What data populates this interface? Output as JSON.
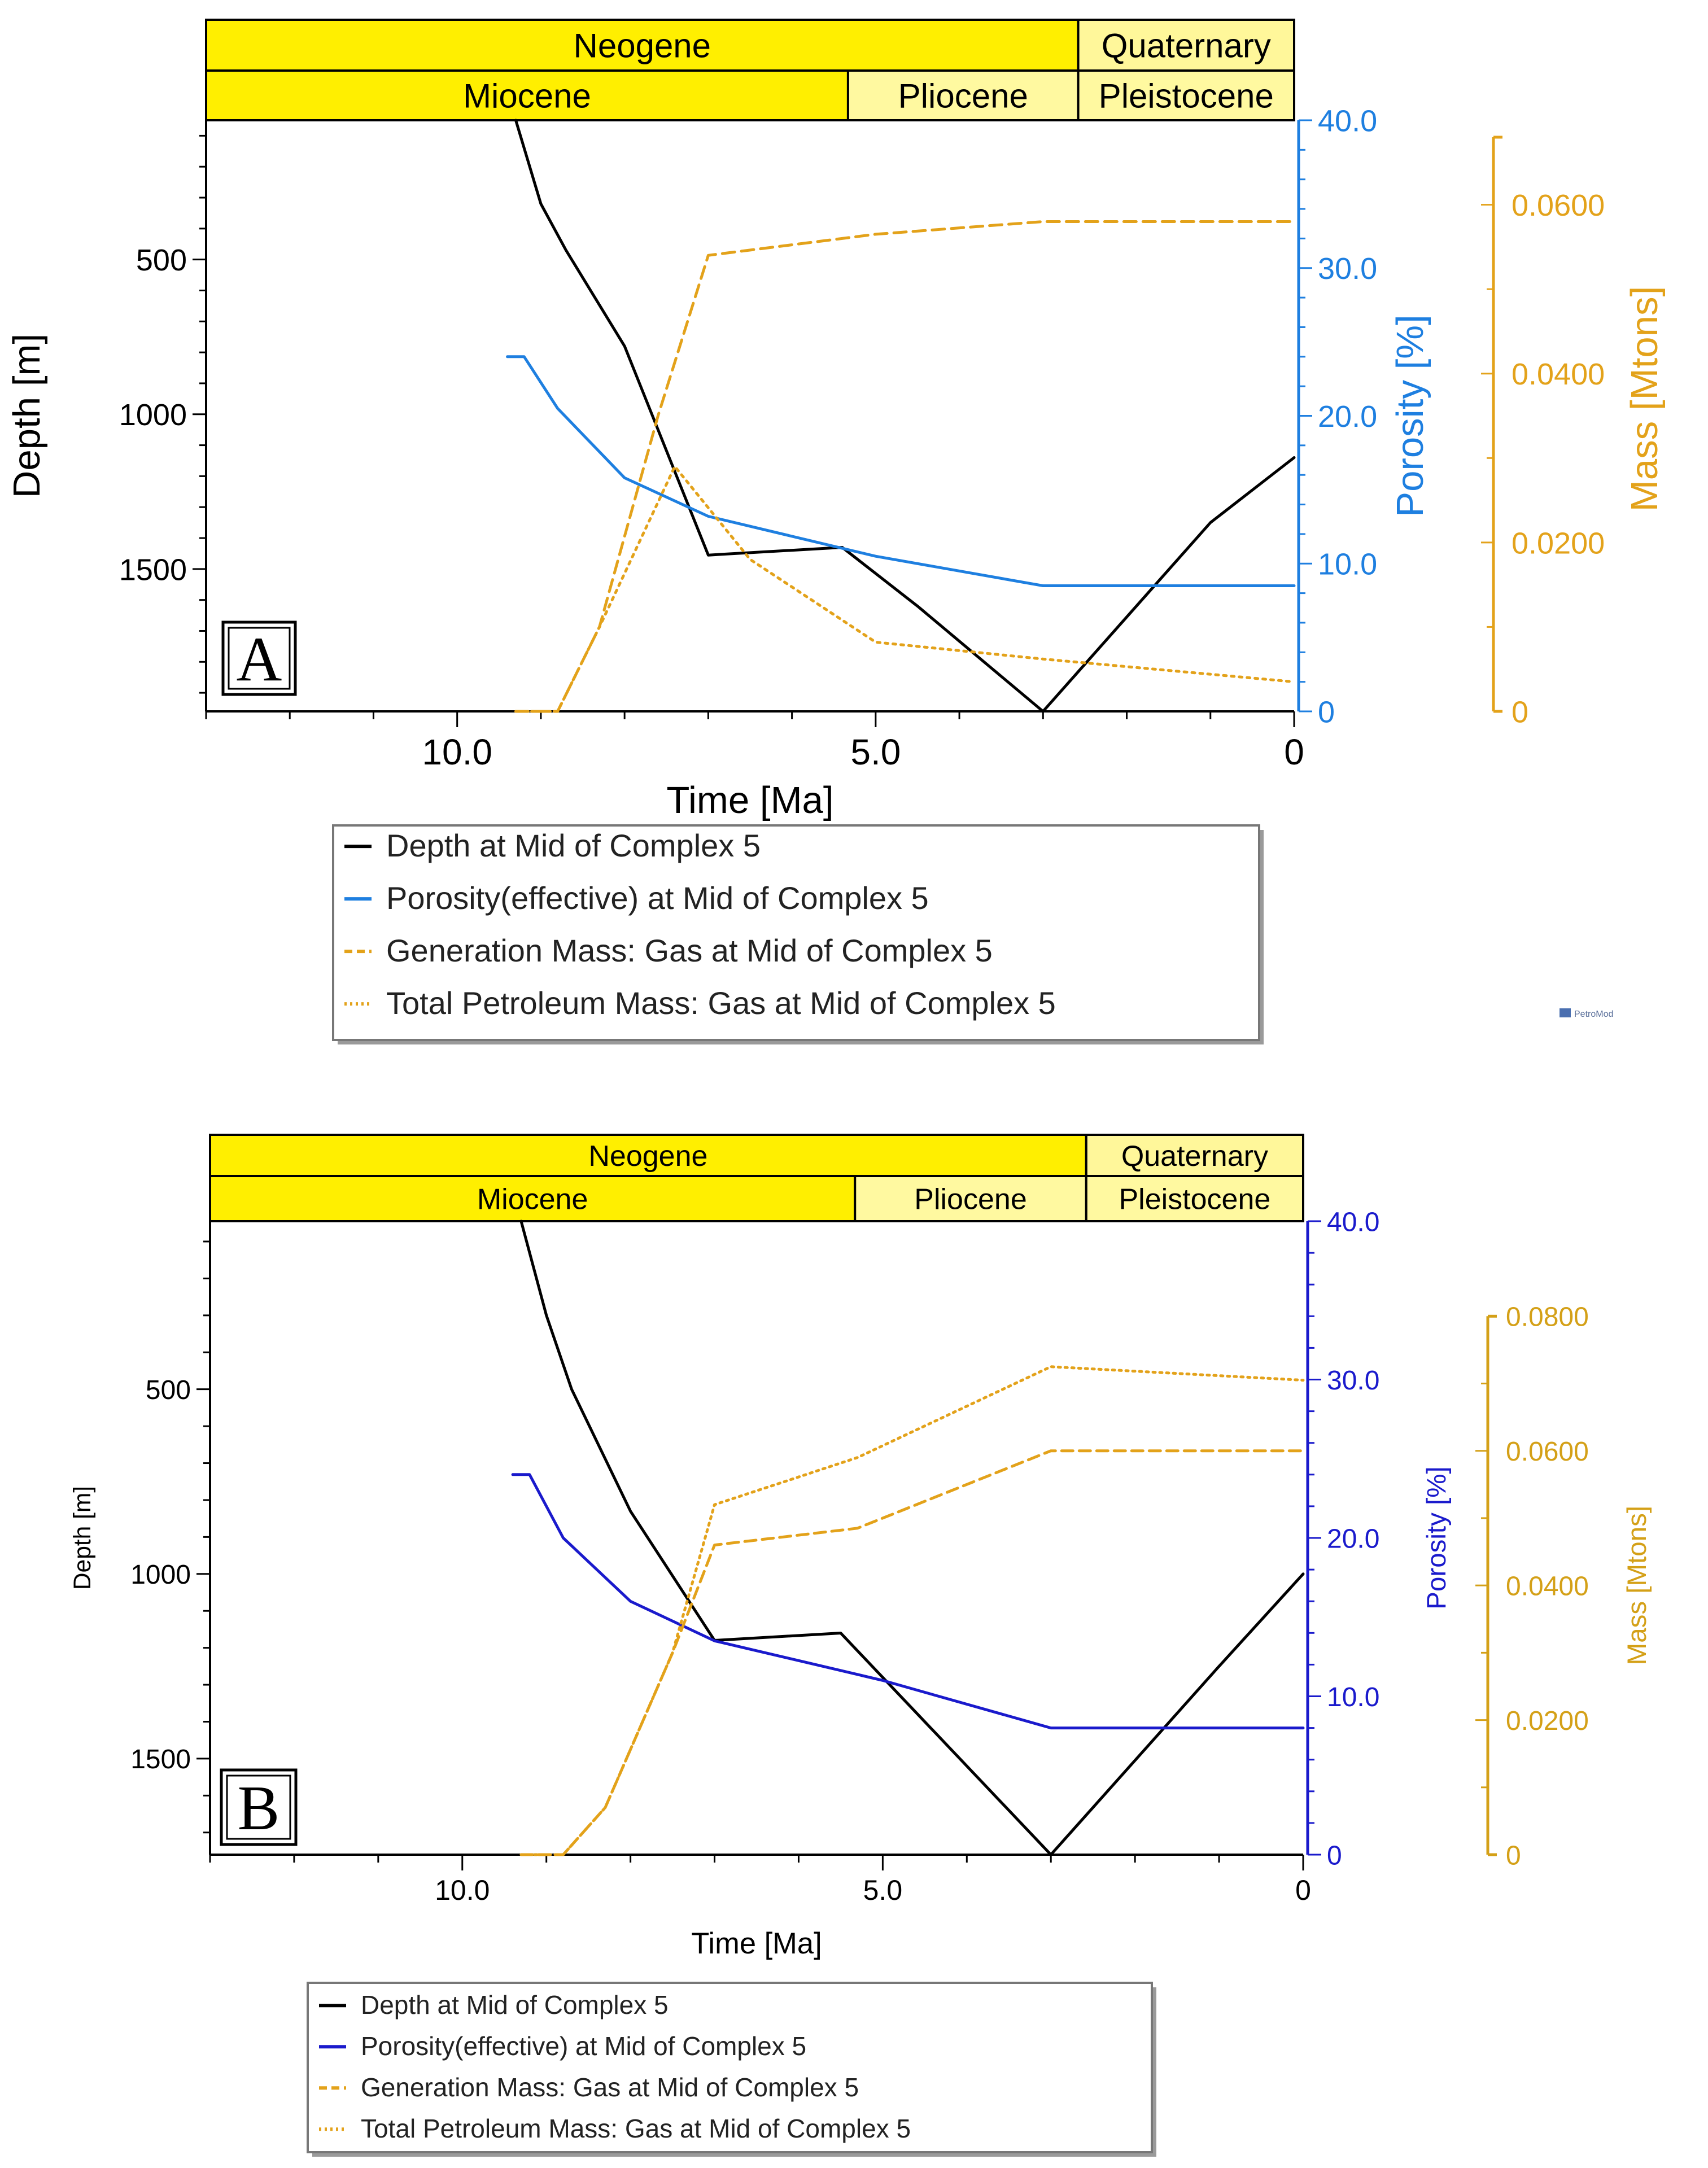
{
  "chart_data": [
    {
      "type": "line",
      "panel_label": "A",
      "time_scale": {
        "period_row": [
          {
            "name": "Neogene",
            "from": 13,
            "to": 2.58
          },
          {
            "name": "Quaternary",
            "from": 2.58,
            "to": 0
          }
        ],
        "epoch_row": [
          {
            "name": "Miocene",
            "from": 13,
            "to": 5.33
          },
          {
            "name": "Pliocene",
            "from": 5.33,
            "to": 2.58
          },
          {
            "name": "Pleistocene",
            "from": 2.58,
            "to": 0
          }
        ]
      },
      "xlabel": "Time [Ma]",
      "xlim": [
        13,
        0
      ],
      "x_ticks": [
        10,
        5,
        0
      ],
      "x_tick_labels": [
        "10.0",
        "5.0",
        "0"
      ],
      "y_left": {
        "label": "Depth [m]",
        "lim": [
          50,
          1960
        ],
        "ticks": [
          500,
          1000,
          1500
        ],
        "tick_labels": [
          "500",
          "1000",
          "1500"
        ],
        "color": "#000000"
      },
      "y_right_1": {
        "label": "Porosity [%]",
        "lim": [
          0,
          40
        ],
        "ticks": [
          0,
          10,
          20,
          30,
          40
        ],
        "tick_labels": [
          "0",
          "10.0",
          "20.0",
          "30.0",
          "40.0"
        ],
        "color": "#1e7fe0"
      },
      "y_right_2": {
        "label": "Mass [Mtons]",
        "lim": [
          0,
          0.07
        ],
        "ticks": [
          0,
          0.02,
          0.04,
          0.06
        ],
        "tick_labels": [
          "0",
          "0.0200",
          "0.0400",
          "0.0600"
        ],
        "color": "#e3a21a"
      },
      "series": [
        {
          "name": "Depth at Mid of Complex 5",
          "axis": "left",
          "color": "#000000",
          "style": "solid",
          "x": [
            9.3,
            9.0,
            8.7,
            8.0,
            7.0,
            5.4,
            4.5,
            3.0,
            1.0,
            0
          ],
          "y": [
            50,
            320,
            470,
            780,
            1455,
            1430,
            1620,
            1960,
            1350,
            1140
          ]
        },
        {
          "name": "Porosity(effective) at Mid of Complex 5",
          "axis": "right1",
          "color": "#1e7fe0",
          "style": "solid",
          "x": [
            9.4,
            9.2,
            8.8,
            8.0,
            7.0,
            5.0,
            3.0,
            0
          ],
          "y": [
            24.0,
            24.0,
            20.5,
            15.8,
            13.2,
            10.5,
            8.5,
            8.5
          ]
        },
        {
          "name": "Generation Mass: Gas at Mid of Complex 5",
          "axis": "right2",
          "color": "#e3a21a",
          "style": "dashed",
          "x": [
            9.3,
            8.8,
            8.3,
            7.6,
            7.0,
            5.0,
            3.0,
            0
          ],
          "y": [
            0.0,
            0.0,
            0.01,
            0.035,
            0.054,
            0.0565,
            0.058,
            0.058
          ]
        },
        {
          "name": "Total Petroleum Mass: Gas at Mid of Complex 5",
          "axis": "right2",
          "color": "#e3a21a",
          "style": "dotted",
          "x": [
            9.3,
            8.8,
            8.3,
            7.4,
            6.5,
            5.0,
            3.0,
            0
          ],
          "y": [
            0.0,
            0.0,
            0.01,
            0.029,
            0.018,
            0.0082,
            0.0062,
            0.0035
          ]
        }
      ]
    },
    {
      "type": "line",
      "panel_label": "B",
      "time_scale": {
        "period_row": [
          {
            "name": "Neogene",
            "from": 13,
            "to": 2.58
          },
          {
            "name": "Quaternary",
            "from": 2.58,
            "to": 0
          }
        ],
        "epoch_row": [
          {
            "name": "Miocene",
            "from": 13,
            "to": 5.33
          },
          {
            "name": "Pliocene",
            "from": 5.33,
            "to": 2.58
          },
          {
            "name": "Pleistocene",
            "from": 2.58,
            "to": 0
          }
        ]
      },
      "xlabel": "Time [Ma]",
      "xlim": [
        13,
        0
      ],
      "x_ticks": [
        10,
        5,
        0
      ],
      "x_tick_labels": [
        "10.0",
        "5.0",
        "0"
      ],
      "y_left": {
        "label": "Depth [m]",
        "lim": [
          45,
          1760
        ],
        "ticks": [
          500,
          1000,
          1500
        ],
        "tick_labels": [
          "500",
          "1000",
          "1500"
        ],
        "color": "#000000"
      },
      "y_right_1": {
        "label": "Porosity [%]",
        "lim": [
          0,
          40
        ],
        "ticks": [
          0,
          10,
          20,
          30,
          40
        ],
        "tick_labels": [
          "0",
          "10.0",
          "20.0",
          "30.0",
          "40.0"
        ],
        "color": "#1a1acc"
      },
      "y_right_2": {
        "label": "Mass [Mtons]",
        "lim": [
          0,
          0.08
        ],
        "ticks": [
          0,
          0.02,
          0.04,
          0.06,
          0.08
        ],
        "tick_labels": [
          "0",
          "0.0200",
          "0.0400",
          "0.0600",
          "0.0800"
        ],
        "color": "#d4a017"
      },
      "series": [
        {
          "name": "Depth at Mid of Complex 5",
          "axis": "left",
          "color": "#000000",
          "style": "solid",
          "x": [
            9.3,
            9.0,
            8.7,
            8.0,
            7.0,
            5.5,
            4.5,
            3.0,
            1.0,
            0
          ],
          "y": [
            45,
            300,
            500,
            830,
            1180,
            1160,
            1400,
            1760,
            1250,
            1000
          ]
        },
        {
          "name": "Porosity(effective) at Mid of Complex 5",
          "axis": "right1",
          "color": "#1a1acc",
          "style": "solid",
          "x": [
            9.4,
            9.2,
            8.8,
            8.0,
            7.0,
            5.0,
            3.0,
            0
          ],
          "y": [
            24.0,
            24.0,
            20.0,
            16.0,
            13.5,
            11.0,
            8.0,
            8.0
          ]
        },
        {
          "name": "Generation Mass: Gas at Mid of Complex 5",
          "axis": "right2",
          "color": "#e3a21a",
          "style": "dashed",
          "x": [
            9.3,
            8.8,
            8.3,
            7.5,
            7.0,
            5.3,
            3.0,
            0
          ],
          "y": [
            0.0,
            0.0,
            0.007,
            0.03,
            0.046,
            0.0485,
            0.06,
            0.06
          ]
        },
        {
          "name": "Total Petroleum Mass: Gas at Mid of Complex 5",
          "axis": "right2",
          "color": "#e3a21a",
          "style": "dotted",
          "x": [
            9.3,
            8.8,
            8.3,
            7.5,
            7.0,
            5.3,
            3.0,
            0
          ],
          "y": [
            0.0,
            0.0,
            0.007,
            0.03,
            0.052,
            0.059,
            0.0725,
            0.0705
          ]
        }
      ]
    }
  ],
  "watermark": "PetroMod"
}
